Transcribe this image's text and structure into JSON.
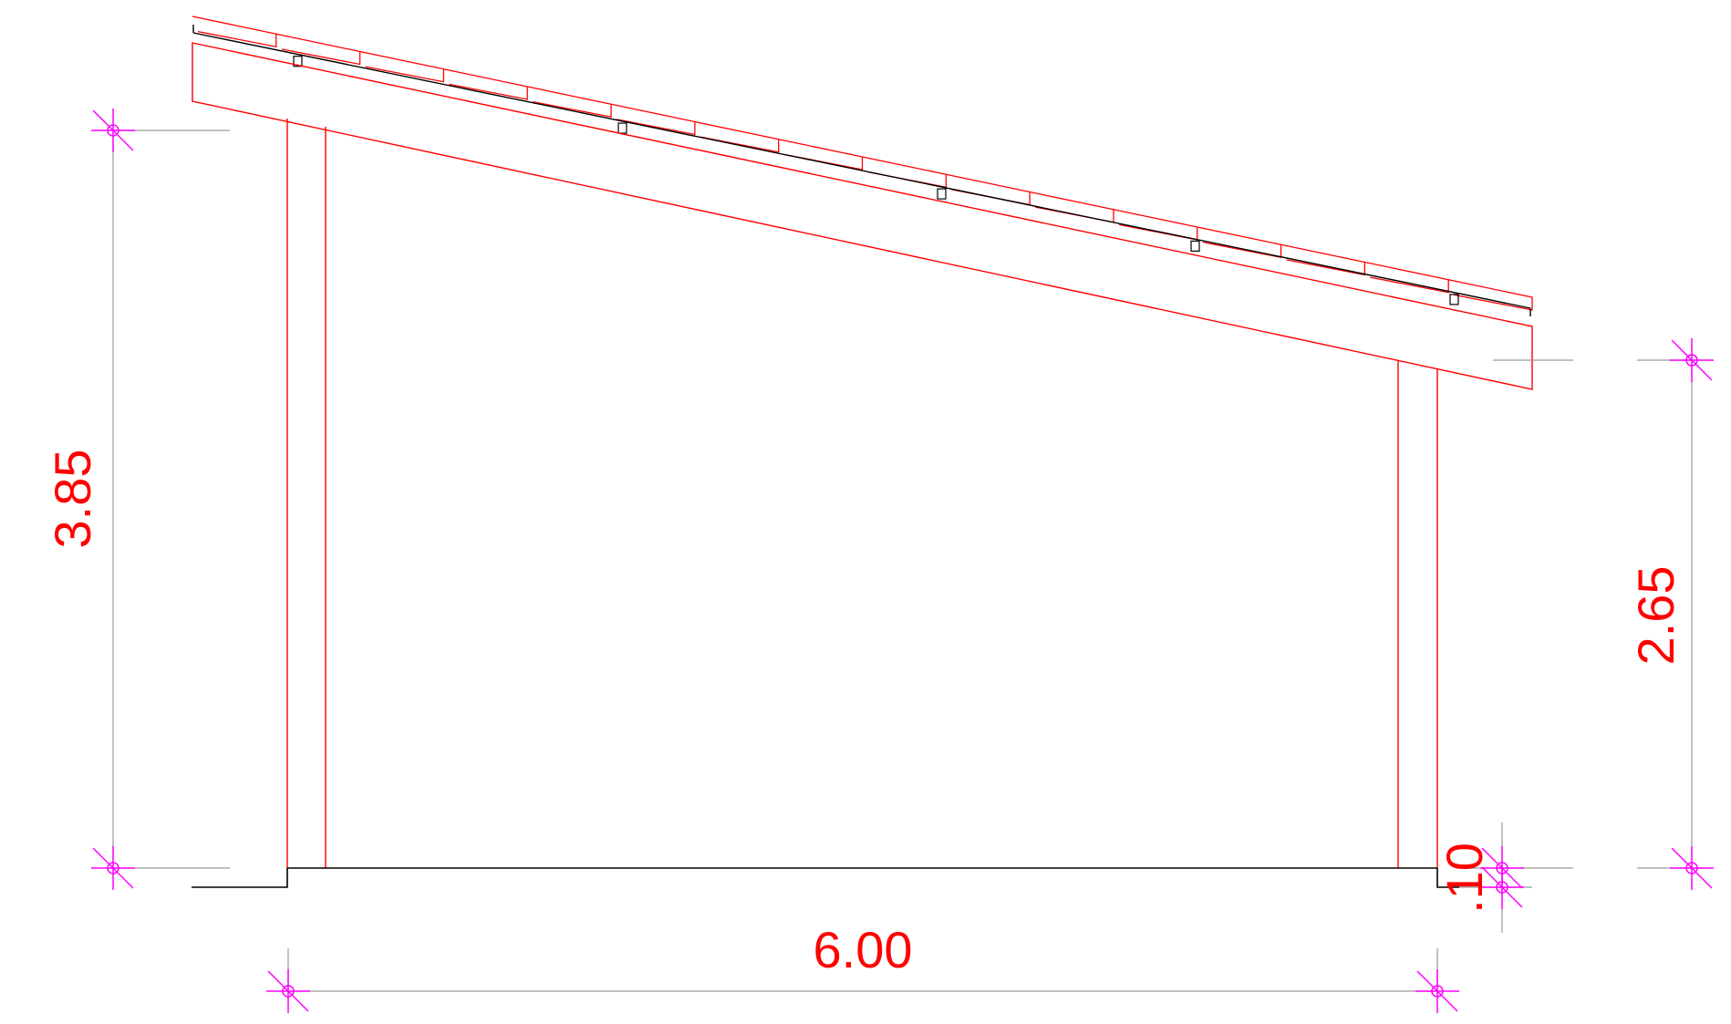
{
  "colors": {
    "linework": "#ff0000",
    "roof_membrane": "#000000",
    "extension_lines": "#9a9a9a",
    "markers": "#ff00ff",
    "dimension_text": "#ff0000"
  },
  "dimensions": {
    "left_height": "3.85",
    "right_height": "2.65",
    "base_step": ".10",
    "span_width": "6.00"
  }
}
